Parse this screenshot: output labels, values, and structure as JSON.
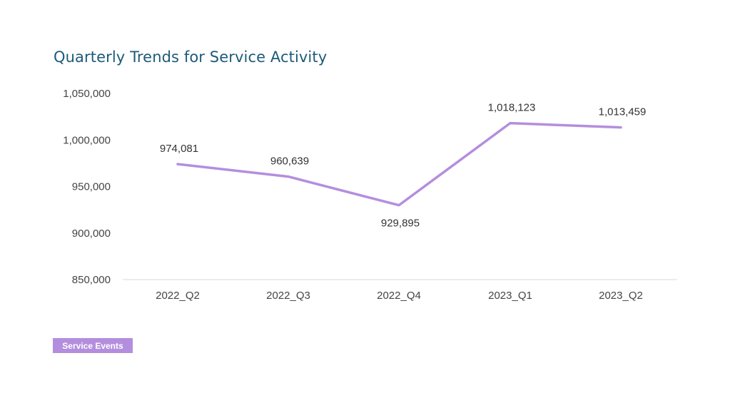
{
  "chart_data": {
    "type": "line",
    "title": "Quarterly Trends for Service Activity",
    "categories": [
      "2022_Q2",
      "2022_Q3",
      "2022_Q4",
      "2023_Q1",
      "2023_Q2"
    ],
    "series": [
      {
        "name": "Service Events",
        "values": [
          974081,
          960639,
          929895,
          1018123,
          1013459
        ],
        "data_labels": [
          "974,081",
          "960,639",
          "929,895",
          "1,018,123",
          "1,013,459"
        ],
        "color": "#b48ede"
      }
    ],
    "ylim": [
      850000,
      1050000
    ],
    "yticks": [
      1050000,
      1000000,
      950000,
      900000,
      850000
    ],
    "ytick_labels": [
      "1,050,000",
      "1,000,000",
      "950,000",
      "900,000",
      "850,000"
    ],
    "xlabel": "",
    "ylabel": "",
    "grid": false,
    "legend_position": "bottom-left",
    "title_color": "#1d5a7a",
    "axis_color": "#d9d9d9"
  }
}
